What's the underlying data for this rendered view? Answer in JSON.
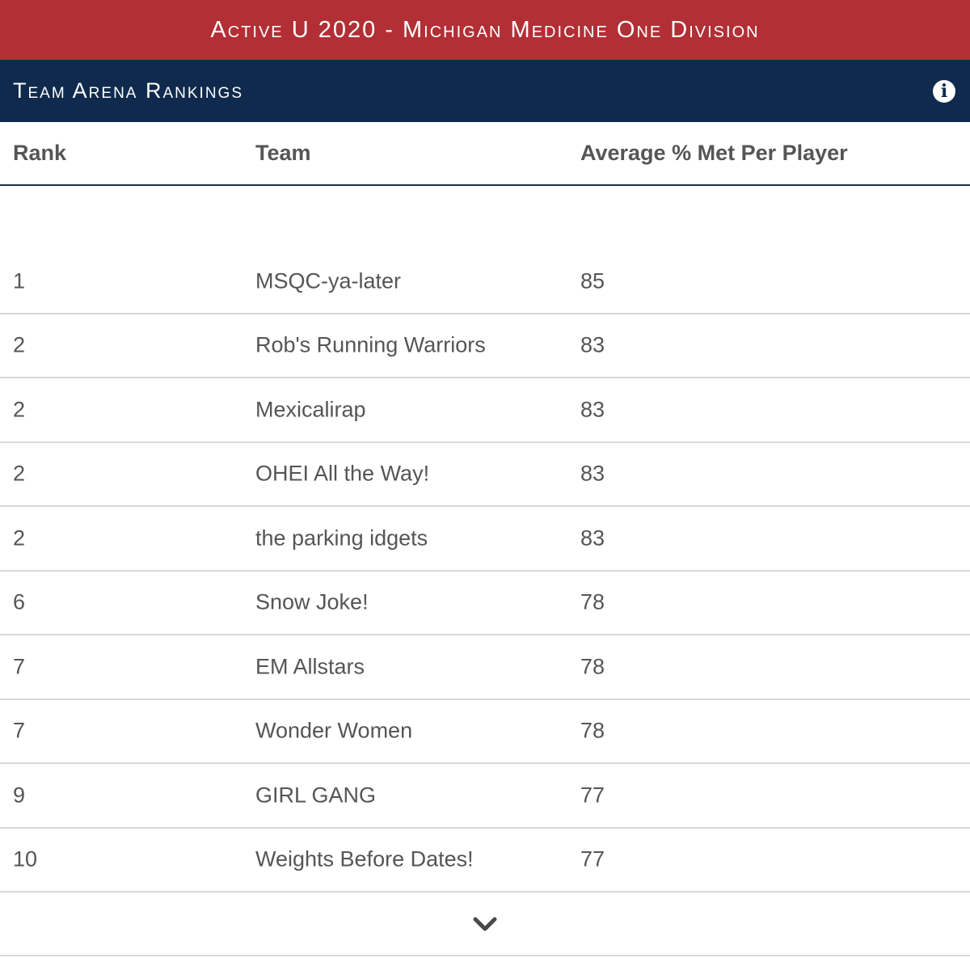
{
  "header": {
    "title": "Active U 2020 - Michigan Medicine One Division"
  },
  "section": {
    "title": "Team Arena Rankings",
    "info_icon": "info-icon"
  },
  "table": {
    "columns": [
      "Rank",
      "Team",
      "Average % Met Per Player"
    ],
    "rows": [
      {
        "rank": "1",
        "team": "MSQC-ya-later",
        "avg": "85"
      },
      {
        "rank": "2",
        "team": "Rob's Running Warriors",
        "avg": "83"
      },
      {
        "rank": "2",
        "team": "Mexicalirap",
        "avg": "83"
      },
      {
        "rank": "2",
        "team": "OHEI All the Way!",
        "avg": "83"
      },
      {
        "rank": "2",
        "team": "the parking idgets",
        "avg": "83"
      },
      {
        "rank": "6",
        "team": "Snow Joke!",
        "avg": "78"
      },
      {
        "rank": "7",
        "team": "EM Allstars",
        "avg": "78"
      },
      {
        "rank": "7",
        "team": "Wonder Women",
        "avg": "78"
      },
      {
        "rank": "9",
        "team": "GIRL GANG",
        "avg": "77"
      },
      {
        "rank": "10",
        "team": "Weights Before Dates!",
        "avg": "77"
      }
    ]
  },
  "footer": {
    "expand_icon": "chevron-down-icon"
  },
  "colors": {
    "title_bar": "#b22f35",
    "section_bar": "#0f2a4d",
    "text": "#555555",
    "divider": "#d9d9d9"
  }
}
